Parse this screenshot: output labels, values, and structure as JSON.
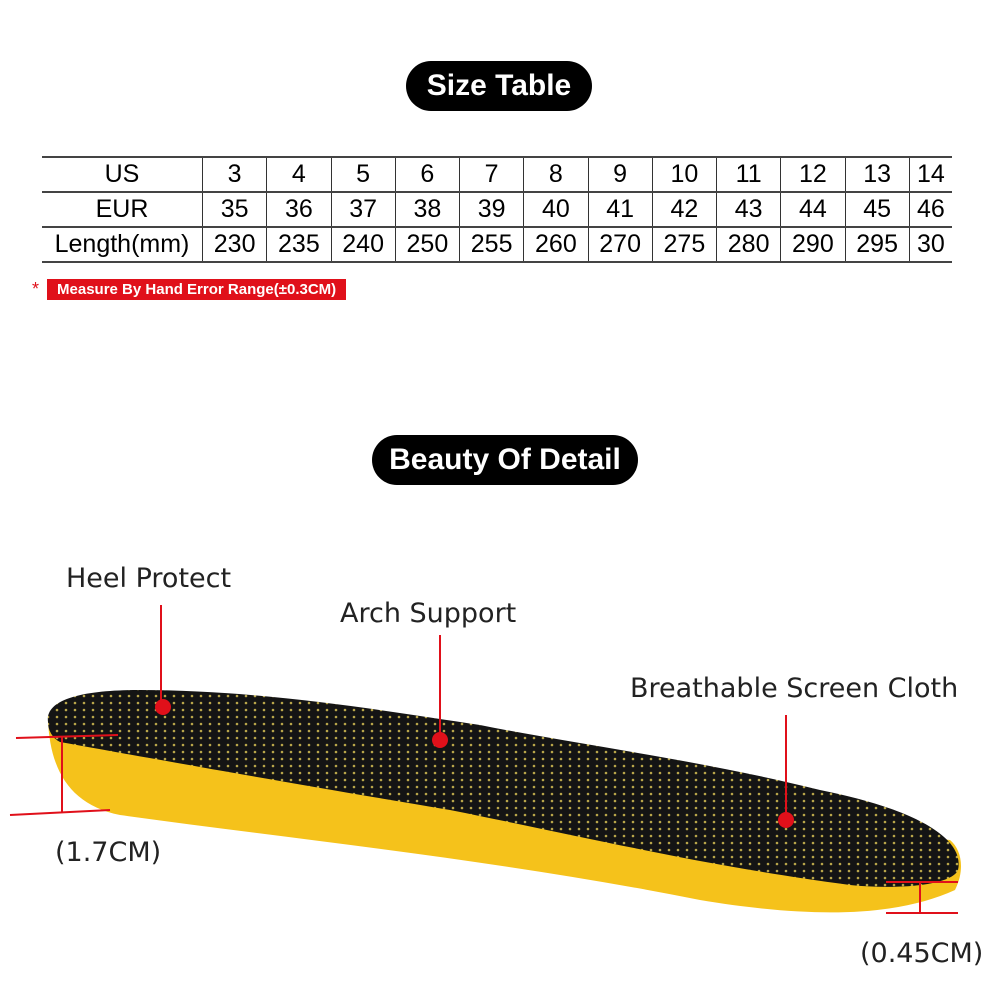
{
  "size_table": {
    "title": "Size Table",
    "rows": [
      {
        "label": "US",
        "values": [
          "3",
          "4",
          "5",
          "6",
          "7",
          "8",
          "9",
          "10",
          "11",
          "12",
          "13",
          "14"
        ]
      },
      {
        "label": "EUR",
        "values": [
          "35",
          "36",
          "37",
          "38",
          "39",
          "40",
          "41",
          "42",
          "43",
          "44",
          "45",
          "46"
        ]
      },
      {
        "label": "Length(mm)",
        "values": [
          "230",
          "235",
          "240",
          "250",
          "255",
          "260",
          "270",
          "275",
          "280",
          "290",
          "295",
          "30"
        ]
      }
    ],
    "note_marker": "*",
    "note": "Measure By Hand Error Range(±0.3CM)"
  },
  "detail": {
    "title": "Beauty Of Detail",
    "labels": {
      "heel": "Heel Protect",
      "arch": "Arch Support",
      "cloth": "Breathable Screen Cloth",
      "heel_height": "(1.7CM)",
      "toe_height": "(0.45CM)"
    }
  },
  "colors": {
    "accent_red": "#e0101a",
    "insole_yellow": "#f5c21b",
    "insole_black": "#141414"
  }
}
